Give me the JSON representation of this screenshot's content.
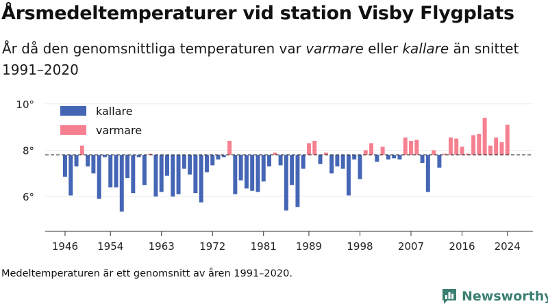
{
  "title": "Årsmedeltemperaturer vid station Visby Flygplats",
  "subtitle": {
    "part1": "År då den genomsnittliga temperaturen var ",
    "em1": "varmare",
    "part2": " eller ",
    "em2": "kallare",
    "part3": " än snittet 1991–2020"
  },
  "footnote": "Medeltemperaturen är ett genomsnitt av åren 1991–2020.",
  "brand": {
    "name": "Newsworthy",
    "icon": "bar-chart-logo-icon"
  },
  "colors": {
    "warmer": "#f5808f",
    "colder": "#4565b5",
    "baseline": "#222222",
    "axis": "#333333",
    "brand": "#3a7f72"
  },
  "chart_data": {
    "type": "bar",
    "baseline": 7.8,
    "ylim": [
      4.5,
      10.2
    ],
    "yticks": [
      {
        "value": 6,
        "label": "6°"
      },
      {
        "value": 8,
        "label": "8°"
      },
      {
        "value": 10,
        "label": "10°"
      }
    ],
    "xlim": [
      1942.5,
      2028.5
    ],
    "xticks": [
      1946,
      1954,
      1963,
      1972,
      1981,
      1989,
      1998,
      2007,
      2016,
      2024
    ],
    "legend": {
      "position": "top-left",
      "items": [
        {
          "label": "kallare",
          "color": "#4565b5"
        },
        {
          "label": "varmare",
          "color": "#f5808f"
        }
      ]
    },
    "years": [
      1946,
      1947,
      1948,
      1949,
      1950,
      1951,
      1952,
      1953,
      1954,
      1955,
      1956,
      1957,
      1958,
      1959,
      1960,
      1961,
      1962,
      1963,
      1964,
      1965,
      1966,
      1967,
      1968,
      1969,
      1970,
      1971,
      1972,
      1973,
      1974,
      1975,
      1976,
      1977,
      1978,
      1979,
      1980,
      1981,
      1982,
      1983,
      1984,
      1985,
      1986,
      1987,
      1988,
      1989,
      1990,
      1991,
      1992,
      1993,
      1994,
      1995,
      1996,
      1997,
      1998,
      1999,
      2000,
      2001,
      2002,
      2003,
      2004,
      2005,
      2006,
      2007,
      2008,
      2009,
      2010,
      2011,
      2012,
      2013,
      2014,
      2015,
      2016,
      2017,
      2018,
      2019,
      2020,
      2021,
      2022,
      2023,
      2024
    ],
    "values": [
      6.85,
      6.05,
      7.3,
      8.2,
      7.3,
      7.0,
      5.9,
      7.7,
      6.4,
      6.4,
      5.35,
      6.8,
      6.15,
      7.7,
      6.5,
      7.85,
      6.0,
      6.2,
      6.9,
      6.0,
      6.1,
      7.2,
      6.95,
      6.15,
      5.75,
      7.05,
      7.35,
      7.6,
      7.7,
      8.4,
      6.1,
      6.7,
      6.35,
      6.25,
      6.2,
      6.65,
      7.3,
      7.9,
      7.35,
      5.4,
      6.5,
      5.55,
      7.2,
      8.3,
      8.4,
      7.4,
      7.9,
      7.0,
      7.3,
      7.2,
      6.05,
      7.6,
      6.75,
      8.0,
      8.3,
      7.5,
      8.15,
      7.6,
      7.65,
      7.6,
      8.55,
      8.4,
      8.45,
      7.45,
      6.2,
      8.0,
      7.25,
      7.85,
      8.55,
      8.5,
      8.15,
      7.85,
      8.65,
      8.7,
      9.4,
      8.2,
      8.55,
      8.35,
      9.1
    ]
  }
}
